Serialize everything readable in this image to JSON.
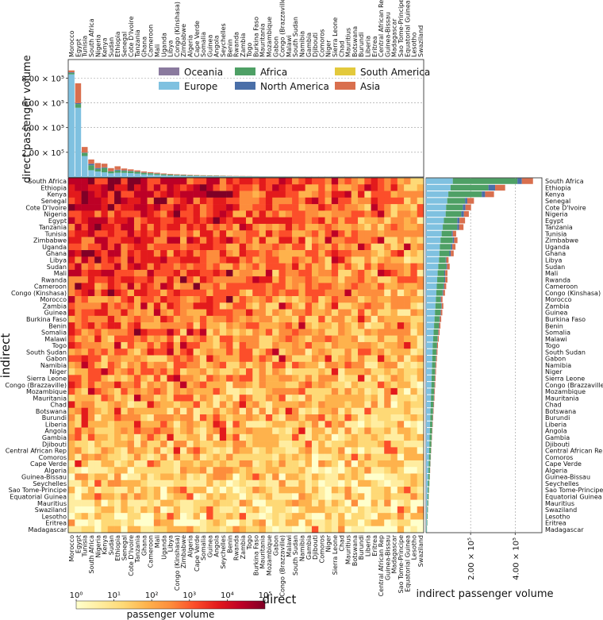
{
  "chart_data": [
    {
      "type": "bar",
      "stacked": true,
      "orientation": "vertical",
      "ylabel": "direct passenger volume",
      "ylim": [
        0,
        950000
      ],
      "yticks": [
        "2.00 × 10⁵",
        "4.00 × 10⁵",
        "6.00 × 10⁵",
        "8.00 × 10⁵"
      ],
      "ytick_values": [
        200000,
        400000,
        600000,
        800000
      ],
      "grid": true,
      "legend_position": "top-center",
      "series_colors": {
        "Oceania": "#8a7a9e",
        "Europe": "#7fc1e0",
        "Africa": "#4ea065",
        "North America": "#4a6fa8",
        "South America": "#e3c93c",
        "Asia": "#d96f4e"
      },
      "categories": [
        "Morocco",
        "Egypt",
        "Tunisia",
        "South Africa",
        "Nigeria",
        "Kenya",
        "Sudan",
        "Ethiopia",
        "Senegal",
        "Cote D'Ivoire",
        "Tanzania",
        "Ghana",
        "Cameroon",
        "Mali",
        "Uganda",
        "Libya",
        "Congo (Kinshasa)",
        "Zimbabwe",
        "Algeria",
        "Cape Verde",
        "Somalia",
        "Guinea",
        "Angola",
        "Seychelles",
        "Benin",
        "Rwanda",
        "Zambia",
        "Togo",
        "Burkina Faso",
        "Mauritania",
        "Mozambique",
        "Gabon",
        "Congo (Brazzaville)",
        "Malawi",
        "South Sudan",
        "Namibia",
        "Gambia",
        "Djibouti",
        "Comoros",
        "Niger",
        "Sierra Leone",
        "Chad",
        "Mauritius",
        "Botswana",
        "Burundi",
        "Liberia",
        "Eritrea",
        "Central African Rep",
        "Guinea-Bissau",
        "Madagascar",
        "Sao Tome-Principe",
        "Equatorial Guinea",
        "Lesotho",
        "Swaziland"
      ],
      "series": [
        {
          "name": "Europe",
          "values": [
            830000,
            560000,
            170000,
            55000,
            45000,
            38000,
            30000,
            35000,
            34000,
            32000,
            28000,
            22000,
            20000,
            18000,
            14000,
            12000,
            11000,
            10000,
            9000,
            8000,
            7000,
            6500,
            6000,
            5500,
            5000,
            4500,
            4000,
            3800,
            3500,
            3200,
            3000,
            2800,
            2600,
            2400,
            2200,
            2000,
            1800,
            1600,
            1500,
            1400,
            1300,
            1200,
            1100,
            1000,
            900,
            800,
            700,
            600,
            500,
            400,
            300,
            250,
            200,
            150
          ]
        },
        {
          "name": "Africa",
          "values": [
            12000,
            30000,
            25000,
            40000,
            20000,
            35000,
            15000,
            18000,
            16000,
            15000,
            14000,
            12000,
            10000,
            9000,
            8000,
            7000,
            6000,
            5500,
            5000,
            4500,
            4000,
            3800,
            3500,
            3200,
            3000,
            2800,
            2600,
            2400,
            2200,
            2000,
            1800,
            1600,
            1500,
            1400,
            1300,
            1200,
            1100,
            1000,
            900,
            800,
            700,
            650,
            600,
            550,
            500,
            450,
            400,
            350,
            300,
            250,
            200,
            150,
            120,
            100
          ]
        },
        {
          "name": "North America",
          "values": [
            5000,
            8000,
            3000,
            12000,
            8000,
            5000,
            2000,
            6000,
            4000,
            3000,
            2000,
            2000,
            1500,
            1000,
            1000,
            800,
            700,
            600,
            500,
            400,
            350,
            300,
            280,
            250,
            220,
            200,
            180,
            160,
            140,
            120,
            100,
            90,
            80,
            70,
            60,
            50,
            45,
            40,
            35,
            30,
            28,
            25,
            22,
            20,
            18,
            16,
            14,
            12,
            10,
            8,
            6,
            5,
            4,
            3
          ]
        },
        {
          "name": "Asia",
          "values": [
            15000,
            160000,
            45000,
            35000,
            40000,
            30000,
            25000,
            28000,
            15000,
            12000,
            10000,
            9000,
            8000,
            7000,
            6000,
            5000,
            4500,
            4000,
            3500,
            3000,
            2800,
            2600,
            2400,
            2200,
            2000,
            1800,
            1600,
            1400,
            1200,
            1000,
            900,
            800,
            700,
            600,
            500,
            450,
            400,
            350,
            300,
            250,
            200,
            180,
            160,
            140,
            120,
            100,
            80,
            60,
            50,
            40,
            30,
            25,
            20,
            15
          ]
        }
      ]
    },
    {
      "type": "heatmap",
      "xlabel": "direct",
      "ylabel": "indirect",
      "x_categories": [
        "Morocco",
        "Egypt",
        "Tunisia",
        "South Africa",
        "Nigeria",
        "Kenya",
        "Sudan",
        "Ethiopia",
        "Senegal",
        "Cote D'Ivoire",
        "Tanzania",
        "Ghana",
        "Cameroon",
        "Mali",
        "Uganda",
        "Libya",
        "Congo (Kinshasa)",
        "Zimbabwe",
        "Algeria",
        "Cape Verde",
        "Somalia",
        "Guinea",
        "Angola",
        "Seychelles",
        "Benin",
        "Rwanda",
        "Zambia",
        "Togo",
        "Burkina Faso",
        "Mauritania",
        "Mozambique",
        "Gabon",
        "Congo (Brazzaville)",
        "Malawi",
        "South Sudan",
        "Namibia",
        "Gambia",
        "Djibouti",
        "Comoros",
        "Niger",
        "Sierra Leone",
        "Chad",
        "Mauritius",
        "Botswana",
        "Burundi",
        "Liberia",
        "Eritrea",
        "Central African Rep",
        "Guinea-Bissau",
        "Madagascar",
        "Sao Tome-Principe",
        "Equatorial Guinea",
        "Lesotho",
        "Swaziland"
      ],
      "y_categories": [
        "South Africa",
        "Ethiopia",
        "Kenya",
        "Senegal",
        "Cote D'Ivoire",
        "Nigeria",
        "Egypt",
        "Tanzania",
        "Tunisia",
        "Zimbabwe",
        "Uganda",
        "Ghana",
        "Libya",
        "Sudan",
        "Mali",
        "Rwanda",
        "Cameroon",
        "Congo (Kinshasa)",
        "Morocco",
        "Zambia",
        "Guinea",
        "Burkina Faso",
        "Benin",
        "Somalia",
        "Malawi",
        "Togo",
        "South Sudan",
        "Gabon",
        "Namibia",
        "Niger",
        "Sierra Leone",
        "Congo (Brazzaville)",
        "Mozambique",
        "Mauritania",
        "Chad",
        "Botswana",
        "Burundi",
        "Liberia",
        "Angola",
        "Gambia",
        "Djibouti",
        "Central African Rep",
        "Comoros",
        "Cape Verde",
        "Algeria",
        "Guinea-Bissau",
        "Seychelles",
        "Sao Tome-Principe",
        "Equatorial Guinea",
        "Mauritius",
        "Swaziland",
        "Lesotho",
        "Eritrea",
        "Madagascar"
      ],
      "colorbar": {
        "label": "passenger volume",
        "scale": "log",
        "ticks": [
          "10⁰",
          "10¹",
          "10²",
          "10³",
          "10⁴",
          "10⁵"
        ],
        "tick_values": [
          1,
          10,
          100,
          1000,
          10000,
          100000
        ],
        "colors": [
          "#ffffcc",
          "#ffeda0",
          "#fed976",
          "#feb24c",
          "#fd8d3c",
          "#fc4e2a",
          "#e31a1c",
          "#bd0026",
          "#800026"
        ]
      },
      "seed": 7
    },
    {
      "type": "bar",
      "stacked": true,
      "orientation": "horizontal",
      "xlabel": "indirect passenger volume",
      "xlim": [
        0,
        520000
      ],
      "xticks": [
        "2.00 × 10⁵",
        "4.00 × 10⁵"
      ],
      "xtick_values": [
        200000,
        400000
      ],
      "grid": true,
      "categories": [
        "South Africa",
        "Ethiopia",
        "Kenya",
        "Senegal",
        "Cote D'Ivoire",
        "Nigeria",
        "Egypt",
        "Tanzania",
        "Tunisia",
        "Zimbabwe",
        "Uganda",
        "Ghana",
        "Libya",
        "Sudan",
        "Mali",
        "Rwanda",
        "Cameroon",
        "Congo (Kinshasa)",
        "Morocco",
        "Zambia",
        "Guinea",
        "Burkina Faso",
        "Benin",
        "Somalia",
        "Malawi",
        "Togo",
        "South Sudan",
        "Gabon",
        "Namibia",
        "Niger",
        "Sierra Leone",
        "Congo (Brazzaville)",
        "Mozambique",
        "Mauritania",
        "Chad",
        "Botswana",
        "Burundi",
        "Liberia",
        "Angola",
        "Gambia",
        "Djibouti",
        "Central African Rep",
        "Comoros",
        "Cape Verde",
        "Algeria",
        "Guinea-Bissau",
        "Seychelles",
        "Sao Tome-Principe",
        "Equatorial Guinea",
        "Mauritius",
        "Swaziland",
        "Lesotho",
        "Eritrea",
        "Madagascar"
      ],
      "series": [
        {
          "name": "Europe",
          "values": [
            120000,
            110000,
            100000,
            95000,
            90000,
            88000,
            80000,
            75000,
            70000,
            65000,
            62000,
            60000,
            58000,
            55000,
            52000,
            50000,
            48000,
            46000,
            44000,
            42000,
            40000,
            38000,
            36000,
            34000,
            32000,
            30000,
            29000,
            28000,
            27000,
            26000,
            25000,
            24000,
            23000,
            22000,
            21000,
            20000,
            19000,
            18000,
            17000,
            16000,
            15000,
            14000,
            13000,
            12000,
            11000,
            10000,
            9000,
            8000,
            7000,
            6000,
            5000,
            4000,
            3000,
            2000
          ]
        },
        {
          "name": "Africa",
          "values": [
            290000,
            170000,
            150000,
            80000,
            75000,
            70000,
            60000,
            65000,
            45000,
            55000,
            50000,
            45000,
            30000,
            35000,
            30000,
            32000,
            30000,
            28000,
            20000,
            26000,
            24000,
            22000,
            21000,
            20000,
            19000,
            18000,
            17000,
            16000,
            15000,
            14500,
            14000,
            13500,
            13000,
            12500,
            12000,
            11000,
            10500,
            10000,
            9500,
            9000,
            8500,
            8000,
            7500,
            7000,
            6500,
            6000,
            5500,
            5000,
            4500,
            4000,
            3500,
            3000,
            2500,
            2000
          ]
        },
        {
          "name": "North America",
          "values": [
            20000,
            30000,
            15000,
            10000,
            12000,
            12000,
            10000,
            8000,
            5000,
            6000,
            6000,
            6000,
            3000,
            4000,
            4000,
            4000,
            3500,
            3000,
            3000,
            2500,
            2500,
            2000,
            2000,
            2000,
            1500,
            1500,
            1500,
            1200,
            1200,
            1000,
            1000,
            1000,
            900,
            900,
            800,
            800,
            700,
            700,
            600,
            600,
            500,
            500,
            400,
            400,
            300,
            300,
            250,
            200,
            150,
            120,
            100,
            80,
            60,
            40
          ]
        },
        {
          "name": "Asia",
          "values": [
            50000,
            45000,
            40000,
            30000,
            25000,
            22000,
            25000,
            20000,
            15000,
            15000,
            14000,
            13000,
            10000,
            12000,
            10000,
            10000,
            9000,
            8000,
            7000,
            7000,
            6500,
            6000,
            5500,
            5000,
            4500,
            4000,
            3800,
            3600,
            3400,
            3200,
            3000,
            2800,
            2600,
            2400,
            2200,
            2000,
            1800,
            1600,
            1400,
            1200,
            1000,
            900,
            800,
            700,
            600,
            500,
            400,
            300,
            250,
            200,
            150,
            100,
            80,
            60
          ]
        }
      ]
    }
  ],
  "legend": {
    "entries": [
      {
        "name": "Oceania",
        "color": "#8a7a9e"
      },
      {
        "name": "Africa",
        "color": "#4ea065"
      },
      {
        "name": "South America",
        "color": "#e3c93c"
      },
      {
        "name": "Europe",
        "color": "#7fc1e0"
      },
      {
        "name": "North America",
        "color": "#4a6fa8"
      },
      {
        "name": "Asia",
        "color": "#d96f4e"
      }
    ]
  }
}
